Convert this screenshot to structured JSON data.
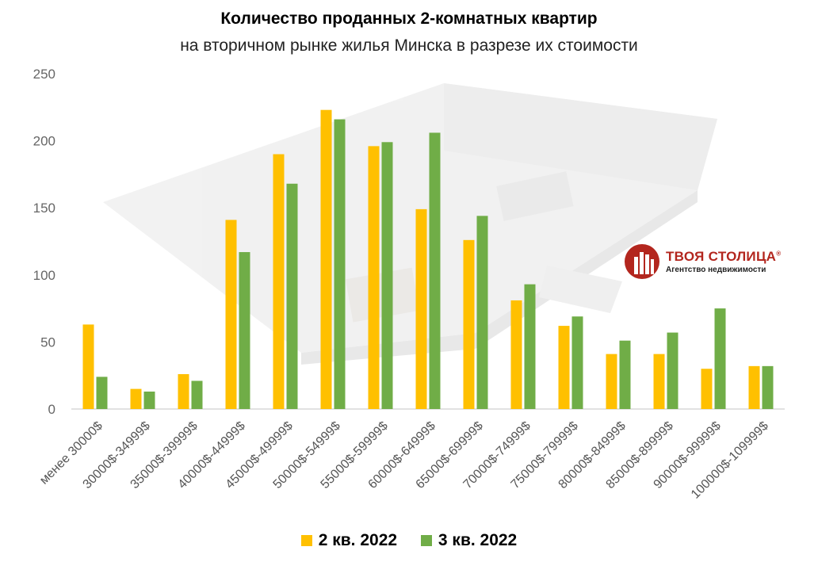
{
  "chart_data": {
    "type": "bar",
    "title": "Количество проданных 2-комнатных квартир",
    "subtitle": "на вторичном рынке жилья Минска в разрезе их стоимости",
    "categories": [
      "менее 30000$",
      "30000$-34999$",
      "35000$-39999$",
      "40000$-44999$",
      "45000$-49999$",
      "50000$-54999$",
      "55000$-59999$",
      "60000$-64999$",
      "65000$-69999$",
      "70000$-74999$",
      "75000$-79999$",
      "80000$-84999$",
      "85000$-89999$",
      "90000$-99999$",
      "100000$-109999$"
    ],
    "series": [
      {
        "name": "2 кв. 2022",
        "color": "#FFC000",
        "values": [
          63,
          15,
          26,
          141,
          190,
          223,
          196,
          149,
          126,
          81,
          62,
          41,
          41,
          30,
          32
        ]
      },
      {
        "name": "3 кв. 2022",
        "color": "#70AD47",
        "values": [
          24,
          13,
          21,
          117,
          168,
          216,
          199,
          206,
          144,
          93,
          69,
          51,
          57,
          75,
          32
        ]
      }
    ],
    "ylim": [
      0,
      250
    ],
    "yticks": [
      0,
      50,
      100,
      150,
      200,
      250
    ],
    "grid": false,
    "legend": "bottom"
  },
  "logo": {
    "name": "ТВОЯ СТОЛИЦА",
    "registered": "®",
    "tagline": "Агентство недвижимости"
  }
}
